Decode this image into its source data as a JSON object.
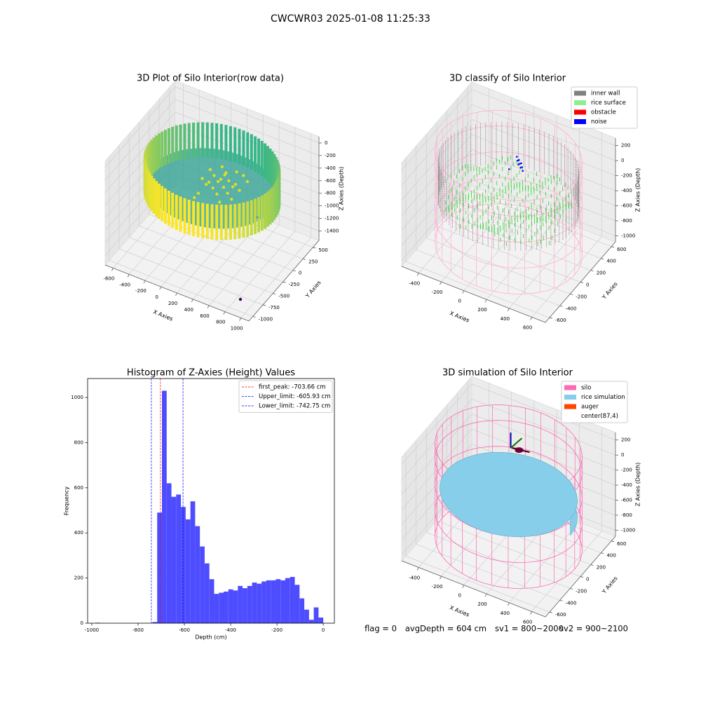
{
  "figure_title": "CWCWR03 2025-01-08 11:25:33",
  "chart_data": [
    {
      "type": "scatter3d",
      "title": "3D Plot of Silo Interior(row data)",
      "xlabel": "X Axies",
      "ylabel": "Y Axies",
      "zlabel": "Z Axies (Depth)",
      "xlim": [
        -700,
        1100
      ],
      "ylim": [
        -1100,
        650
      ],
      "zlim": [
        -1550,
        100
      ],
      "xticks": [
        -600,
        -400,
        -200,
        0,
        200,
        400,
        600,
        800,
        1000
      ],
      "yticks": [
        -1000,
        -750,
        -500,
        -250,
        0,
        250,
        500
      ],
      "zticks": [
        -1400,
        -1200,
        -1000,
        -800,
        -600,
        -400,
        -200,
        0
      ]
    },
    {
      "type": "scatter3d",
      "title": "3D classify of Silo Interior",
      "xlabel": "X Axies",
      "ylabel": "Y Axies",
      "zlabel": "Z Axies (Depth)",
      "xlim": [
        -550,
        720
      ],
      "ylim": [
        -680,
        680
      ],
      "zlim": [
        -1080,
        300
      ],
      "xticks": [
        -400,
        -200,
        0,
        200,
        400,
        600
      ],
      "yticks": [
        -600,
        -400,
        -200,
        0,
        200,
        400,
        600
      ],
      "zticks": [
        -1000,
        -800,
        -600,
        -400,
        -200,
        0,
        200
      ],
      "legend": [
        {
          "name": "inner wall",
          "color": "#808080"
        },
        {
          "name": "rice surface",
          "color": "#90ee90"
        },
        {
          "name": "obstacle",
          "color": "#ff0000"
        },
        {
          "name": "noise",
          "color": "#0000ff"
        }
      ],
      "legend_loc": "upper right"
    },
    {
      "type": "histogram",
      "title": "Histogram of Z-Axies (Height) Values",
      "xlabel": "Depth (cm)",
      "ylabel": "Frequency",
      "color": "#4d4dff",
      "bins": [
        -984,
        -963.5,
        -943,
        -922.5,
        -902,
        -881.5,
        -861,
        -840.5,
        -820,
        -799.5,
        -779,
        -758.5,
        -738,
        -717.5,
        -697,
        -676.5,
        -656,
        -635.5,
        -615,
        -594.5,
        -574,
        -553.5,
        -533,
        -512.5,
        -492,
        -471.5,
        -451,
        -430.5,
        -410,
        -389.5,
        -369,
        -348.5,
        -328,
        -307.5,
        -287,
        -266.5,
        -246,
        -225.5,
        -205,
        -184.5,
        -164,
        -143.5,
        -123,
        -102.5,
        -82,
        -61.5,
        -41,
        -20.5,
        0
      ],
      "counts": [
        2,
        0,
        0,
        0,
        0,
        0,
        0,
        0,
        0,
        0,
        0,
        0,
        5,
        490,
        1030,
        620,
        560,
        570,
        515,
        460,
        540,
        430,
        340,
        265,
        195,
        130,
        135,
        140,
        150,
        145,
        165,
        155,
        165,
        180,
        175,
        185,
        190,
        190,
        195,
        190,
        200,
        205,
        170,
        110,
        60,
        15,
        70,
        25
      ],
      "xlim": [
        -1018,
        48
      ],
      "ylim": [
        0,
        1084
      ],
      "xticks": [
        -1000,
        -800,
        -600,
        -400,
        -200,
        0
      ],
      "yticks": [
        0,
        200,
        400,
        600,
        800,
        1000
      ],
      "lines": [
        {
          "name": "first_peak: -703.66 cm",
          "value": -703.66,
          "color": "#ff0000"
        },
        {
          "name": "Upper_limit: -605.93 cm",
          "value": -605.93,
          "color": "#0000ff"
        },
        {
          "name": "Lower_limit: -742.75 cm",
          "value": -742.75,
          "color": "#0000ff"
        }
      ],
      "legend_loc": "upper right"
    },
    {
      "type": "surface3d",
      "title": "3D simulation of Silo Interior",
      "xlabel": "X Axies",
      "ylabel": "Y Axies",
      "zlabel": "Z Axies (Depth)",
      "xlim": [
        -550,
        720
      ],
      "ylim": [
        -680,
        680
      ],
      "zlim": [
        -1080,
        300
      ],
      "xticks": [
        -400,
        -200,
        0,
        200,
        400,
        600
      ],
      "yticks": [
        -600,
        -400,
        -200,
        0,
        200,
        400,
        600
      ],
      "zticks": [
        -1000,
        -800,
        -600,
        -400,
        -200,
        0,
        200
      ],
      "legend": [
        {
          "name": "silo",
          "color": "#ff69b4"
        },
        {
          "name": "rice simulation",
          "color": "#87ceeb"
        },
        {
          "name": "auger",
          "color": "#ff4500"
        },
        {
          "name": "center(87,4)",
          "color": "#ffffff"
        }
      ],
      "legend_loc": "upper right"
    }
  ],
  "status": {
    "flag": "flag = 0",
    "avg_depth": "avgDepth = 604 cm",
    "sv1": "sv1 = 800~2000",
    "sv2": "sv2 = 900~2100"
  }
}
